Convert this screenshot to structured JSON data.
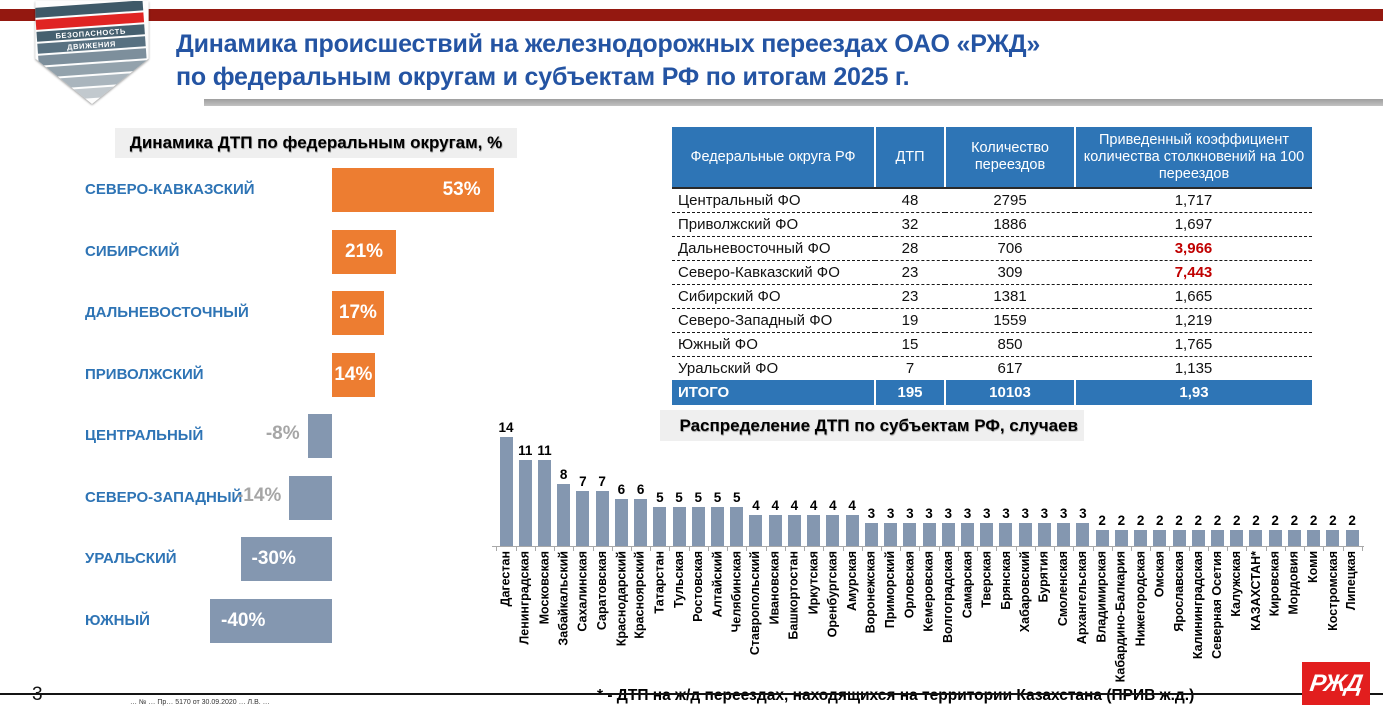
{
  "header": {
    "title_line1": "Динамика происшествий на железнодорожных переездах ОАО «РЖД»",
    "title_line2": "по федеральным округам и субъектам РФ по итогам 2025 г.",
    "logo": {
      "line1": "БЕЗОПАСНОСТЬ",
      "line2": "ДВИЖЕНИЯ"
    }
  },
  "table": {
    "headers": [
      "Федеральные округа РФ",
      "ДТП",
      "Количество переездов",
      "Приведенный коэффициент количества столкновений на 100 переездов"
    ],
    "rows": [
      {
        "district": "Центральный ФО",
        "dtp": "48",
        "crossings": "2795",
        "coefficient": "1,717",
        "highlight": false
      },
      {
        "district": "Приволжский ФО",
        "dtp": "32",
        "crossings": "1886",
        "coefficient": "1,697",
        "highlight": false
      },
      {
        "district": "Дальневосточный ФО",
        "dtp": "28",
        "crossings": "706",
        "coefficient": "3,966",
        "highlight": true
      },
      {
        "district": "Северо-Кавказский ФО",
        "dtp": "23",
        "crossings": "309",
        "coefficient": "7,443",
        "highlight": true
      },
      {
        "district": "Сибирский ФО",
        "dtp": "23",
        "crossings": "1381",
        "coefficient": "1,665",
        "highlight": false
      },
      {
        "district": "Северо-Западный ФО",
        "dtp": "19",
        "crossings": "1559",
        "coefficient": "1,219",
        "highlight": false
      },
      {
        "district": "Южный ФО",
        "dtp": "15",
        "crossings": "850",
        "coefficient": "1,765",
        "highlight": false
      },
      {
        "district": "Уральский ФО",
        "dtp": "7",
        "crossings": "617",
        "coefficient": "1,135",
        "highlight": false
      }
    ],
    "total_row": {
      "district": "ИТОГО",
      "dtp": "195",
      "crossings": "10103",
      "coefficient": "1,93"
    },
    "header_bg": "#2E75B6",
    "highlight_color": "#C00000"
  },
  "chart_data": [
    {
      "type": "bar",
      "orientation": "horizontal",
      "title": "Динамика ДТП по федеральным округам, %",
      "categories": [
        "СЕВЕРО-КАВКАЗСКИЙ",
        "СИБИРСКИЙ",
        "ДАЛЬНЕВОСТОЧНЫЙ",
        "ПРИВОЛЖСКИЙ",
        "ЦЕНТРАЛЬНЫЙ",
        "СЕВЕРО-ЗАПАДНЫЙ",
        "УРАЛЬСКИЙ",
        "ЮЖНЫЙ"
      ],
      "values": [
        53,
        21,
        17,
        14,
        -8,
        -14,
        -30,
        -40
      ],
      "labels": [
        "53%",
        "21%",
        "17%",
        "14%",
        "-8%",
        "-14%",
        "-30%",
        "-40%"
      ],
      "positive_color": "#ED7D31",
      "negative_color": "#8497B0",
      "xlim": [
        -45,
        55
      ],
      "grid": false,
      "legend": false
    },
    {
      "type": "bar",
      "orientation": "vertical",
      "title": "Распределение ДТП по субъектам РФ, случаев",
      "categories": [
        "Дагестан",
        "Ленинградская",
        "Московская",
        "Забайкальский",
        "Сахалинская",
        "Саратовская",
        "Краснодарский",
        "Красноярский",
        "Татарстан",
        "Тульская",
        "Ростовская",
        "Алтайский",
        "Челябинская",
        "Ставропольский",
        "Ивановская",
        "Башкортостан",
        "Иркутская",
        "Оренбургская",
        "Амурская",
        "Воронежская",
        "Приморский",
        "Орловская",
        "Кемеровская",
        "Волгоградская",
        "Самарская",
        "Тверская",
        "Брянская",
        "Хабаровский",
        "Бурятия",
        "Смоленская",
        "Архангельская",
        "Владимирская",
        "Кабардино-Балкария",
        "Нижегородская",
        "Омская",
        "Ярославская",
        "Калининградская",
        "Северная Осетия",
        "Калужская",
        "КАЗАХСТАН*",
        "Кировская",
        "Мордовия",
        "Коми",
        "Костромская",
        "Липецкая"
      ],
      "values": [
        14,
        11,
        11,
        8,
        7,
        7,
        6,
        6,
        5,
        5,
        5,
        5,
        5,
        4,
        4,
        4,
        4,
        4,
        4,
        3,
        3,
        3,
        3,
        3,
        3,
        3,
        3,
        3,
        3,
        3,
        3,
        2,
        2,
        2,
        2,
        2,
        2,
        2,
        2,
        2,
        2,
        2,
        2,
        2,
        2
      ],
      "bar_color": "#8497B0",
      "ylim": [
        0,
        15
      ],
      "grid": false,
      "legend": false
    }
  ],
  "footer": {
    "page_number": "3",
    "footnote": "* - ДТП на ж/д переездах, находящихся на территории Казахстана (ПРИВ ж.д.)",
    "fine_print": "… № … Пр… 5170 от 30.09.2020 … Л.В. …",
    "rzd_logo": "РЖД"
  }
}
